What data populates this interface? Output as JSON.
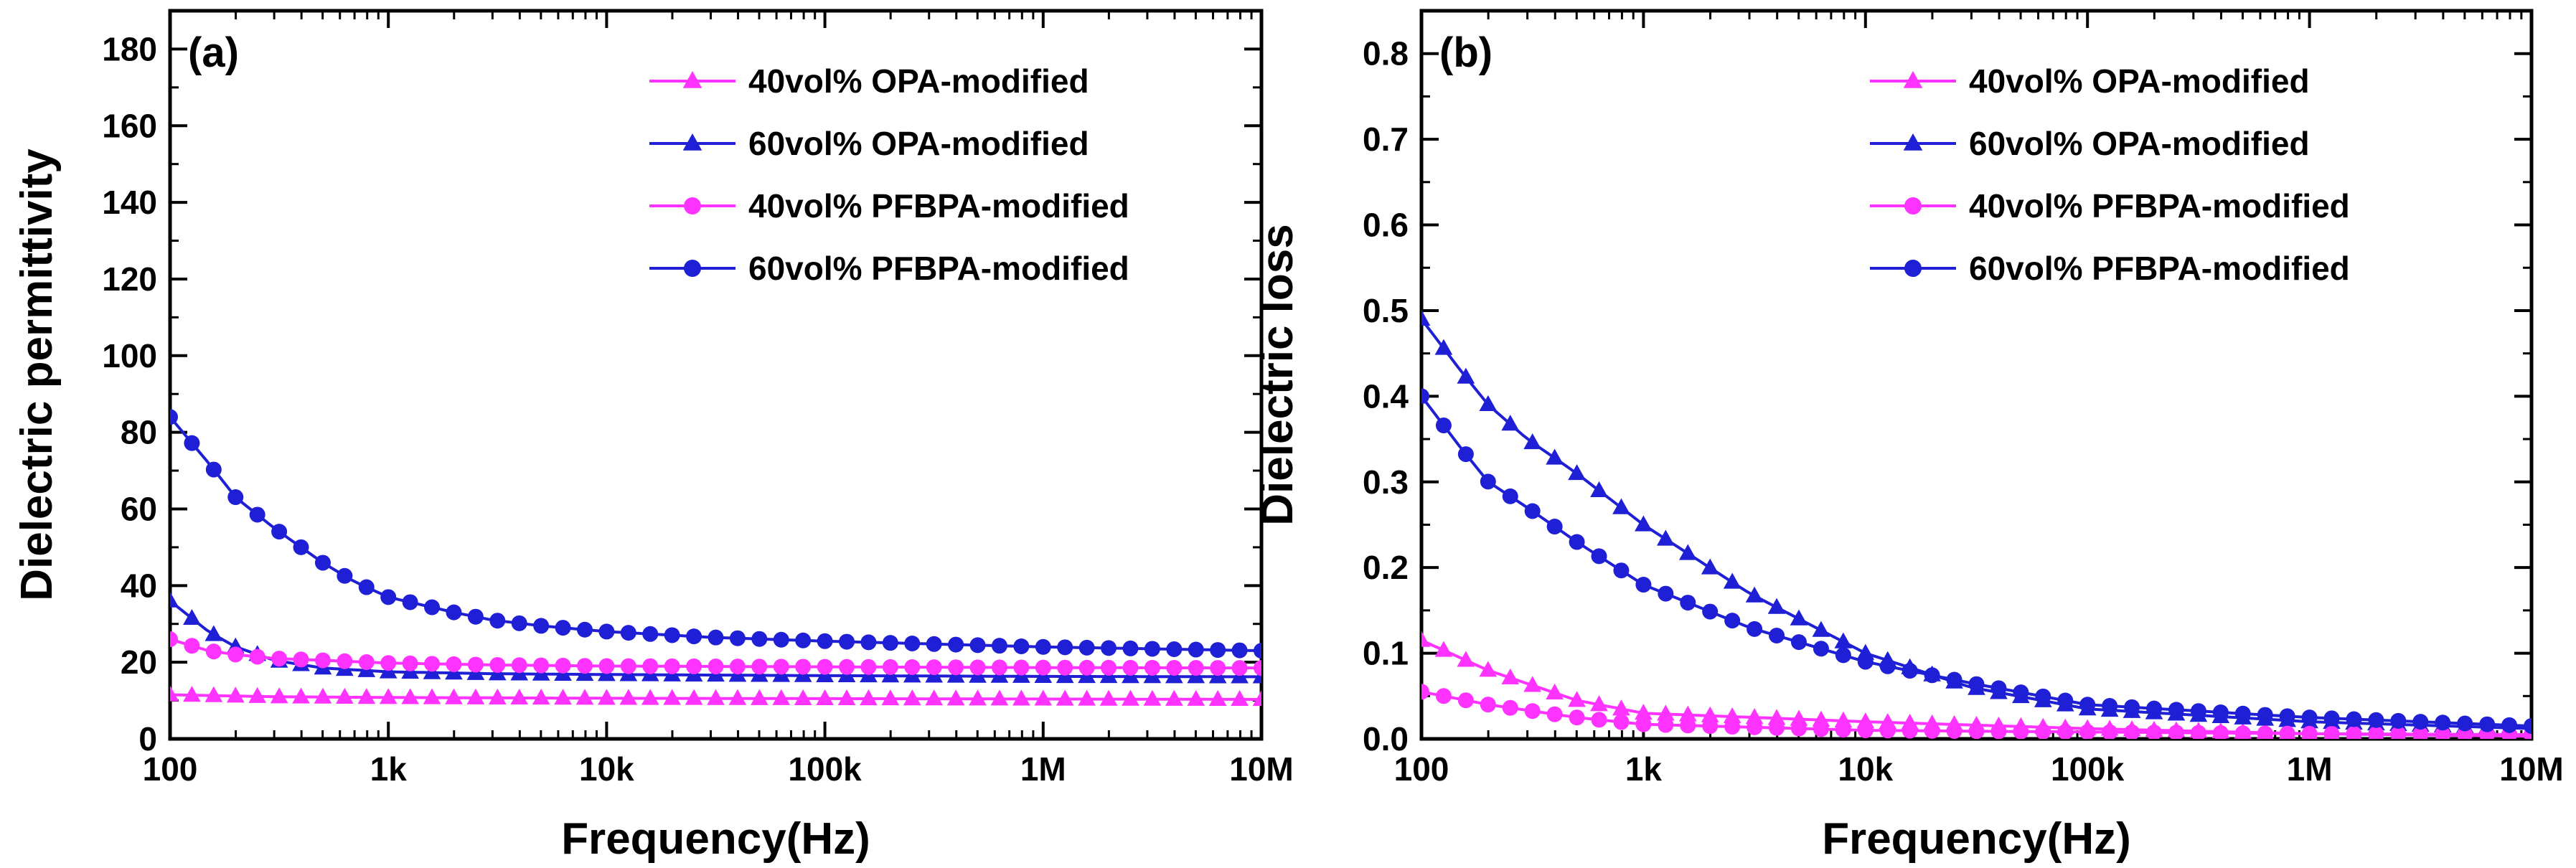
{
  "chart_data": [
    {
      "type": "line",
      "panel_label": "(a)",
      "xlabel": "Frequency(Hz)",
      "ylabel": "Dielectric permittivity",
      "xscale": "log",
      "xlim": [
        100,
        10000000
      ],
      "ylim": [
        0,
        190
      ],
      "xticks": [
        100,
        1000,
        10000,
        100000,
        1000000,
        10000000
      ],
      "xtick_labels": [
        "100",
        "1k",
        "10k",
        "100k",
        "1M",
        "10M"
      ],
      "yticks": [
        0,
        20,
        40,
        60,
        80,
        100,
        120,
        140,
        160,
        180
      ],
      "ytick_labels": [
        "0",
        "20",
        "40",
        "60",
        "80",
        "100",
        "120",
        "140",
        "160",
        "180"
      ],
      "legend_position": "top-right",
      "series": [
        {
          "name": "40vol% OPA-modified",
          "color": "#ff33ff",
          "marker": "triangle",
          "x": [
            100,
            300,
            1000,
            10000,
            100000,
            1000000,
            10000000
          ],
          "y": [
            11.5,
            11.0,
            10.8,
            10.6,
            10.5,
            10.4,
            10.3
          ]
        },
        {
          "name": "60vol% OPA-modified",
          "color": "#1f1fd6",
          "marker": "triangle",
          "x": [
            100,
            150,
            200,
            300,
            500,
            1000,
            3000,
            10000,
            100000,
            1000000,
            10000000
          ],
          "y": [
            36,
            28,
            24,
            20.5,
            18.5,
            17.5,
            17.0,
            16.8,
            16.5,
            16.3,
            16.2
          ]
        },
        {
          "name": "40vol% PFBPA-modified",
          "color": "#ff33ff",
          "marker": "circle",
          "x": [
            100,
            150,
            200,
            300,
            500,
            1000,
            3000,
            10000,
            100000,
            1000000,
            10000000
          ],
          "y": [
            26,
            23,
            22,
            21,
            20.5,
            19.8,
            19.3,
            19.0,
            18.8,
            18.6,
            18.5
          ]
        },
        {
          "name": "60vol% PFBPA-modified",
          "color": "#1f1fd6",
          "marker": "circle",
          "x": [
            100,
            150,
            200,
            300,
            500,
            700,
            1000,
            2000,
            3000,
            5000,
            10000,
            30000,
            100000,
            1000000,
            10000000
          ],
          "y": [
            84,
            72,
            63,
            55,
            46,
            41,
            37,
            33,
            31,
            29.5,
            28,
            26.5,
            25.5,
            24,
            23
          ]
        }
      ]
    },
    {
      "type": "line",
      "panel_label": "(b)",
      "xlabel": "Frequency(Hz)",
      "ylabel": "Dielectric loss",
      "xscale": "log",
      "xlim": [
        100,
        10000000
      ],
      "ylim": [
        0,
        0.85
      ],
      "xticks": [
        100,
        1000,
        10000,
        100000,
        1000000,
        10000000
      ],
      "xtick_labels": [
        "100",
        "1k",
        "10k",
        "100k",
        "1M",
        "10M"
      ],
      "yticks": [
        0,
        0.1,
        0.2,
        0.3,
        0.4,
        0.5,
        0.6,
        0.7,
        0.8
      ],
      "ytick_labels": [
        "0.0",
        "0.1",
        "0.2",
        "0.3",
        "0.4",
        "0.5",
        "0.6",
        "0.7",
        "0.8"
      ],
      "legend_position": "top-right",
      "series": [
        {
          "name": "40vol% OPA-modified",
          "color": "#ff33ff",
          "marker": "triangle",
          "x": [
            100,
            200,
            500,
            1000,
            10000,
            100000,
            1000000,
            10000000
          ],
          "y": [
            0.115,
            0.08,
            0.045,
            0.03,
            0.02,
            0.012,
            0.006,
            0.003
          ]
        },
        {
          "name": "60vol% OPA-modified",
          "color": "#1f1fd6",
          "marker": "triangle",
          "x": [
            100,
            150,
            200,
            300,
            500,
            1000,
            3000,
            10000,
            30000,
            100000,
            1000000,
            10000000
          ],
          "y": [
            0.49,
            0.43,
            0.39,
            0.35,
            0.31,
            0.25,
            0.17,
            0.1,
            0.06,
            0.035,
            0.02,
            0.012
          ]
        },
        {
          "name": "40vol% PFBPA-modified",
          "color": "#ff33ff",
          "marker": "circle",
          "x": [
            100,
            200,
            500,
            1000,
            10000,
            100000,
            1000000,
            10000000
          ],
          "y": [
            0.055,
            0.04,
            0.025,
            0.017,
            0.01,
            0.008,
            0.006,
            0.005
          ]
        },
        {
          "name": "60vol% PFBPA-modified",
          "color": "#1f1fd6",
          "marker": "circle",
          "x": [
            100,
            150,
            200,
            300,
            500,
            1000,
            3000,
            10000,
            30000,
            100000,
            1000000,
            10000000
          ],
          "y": [
            0.4,
            0.34,
            0.3,
            0.27,
            0.23,
            0.18,
            0.13,
            0.09,
            0.065,
            0.04,
            0.025,
            0.015
          ]
        }
      ]
    }
  ]
}
